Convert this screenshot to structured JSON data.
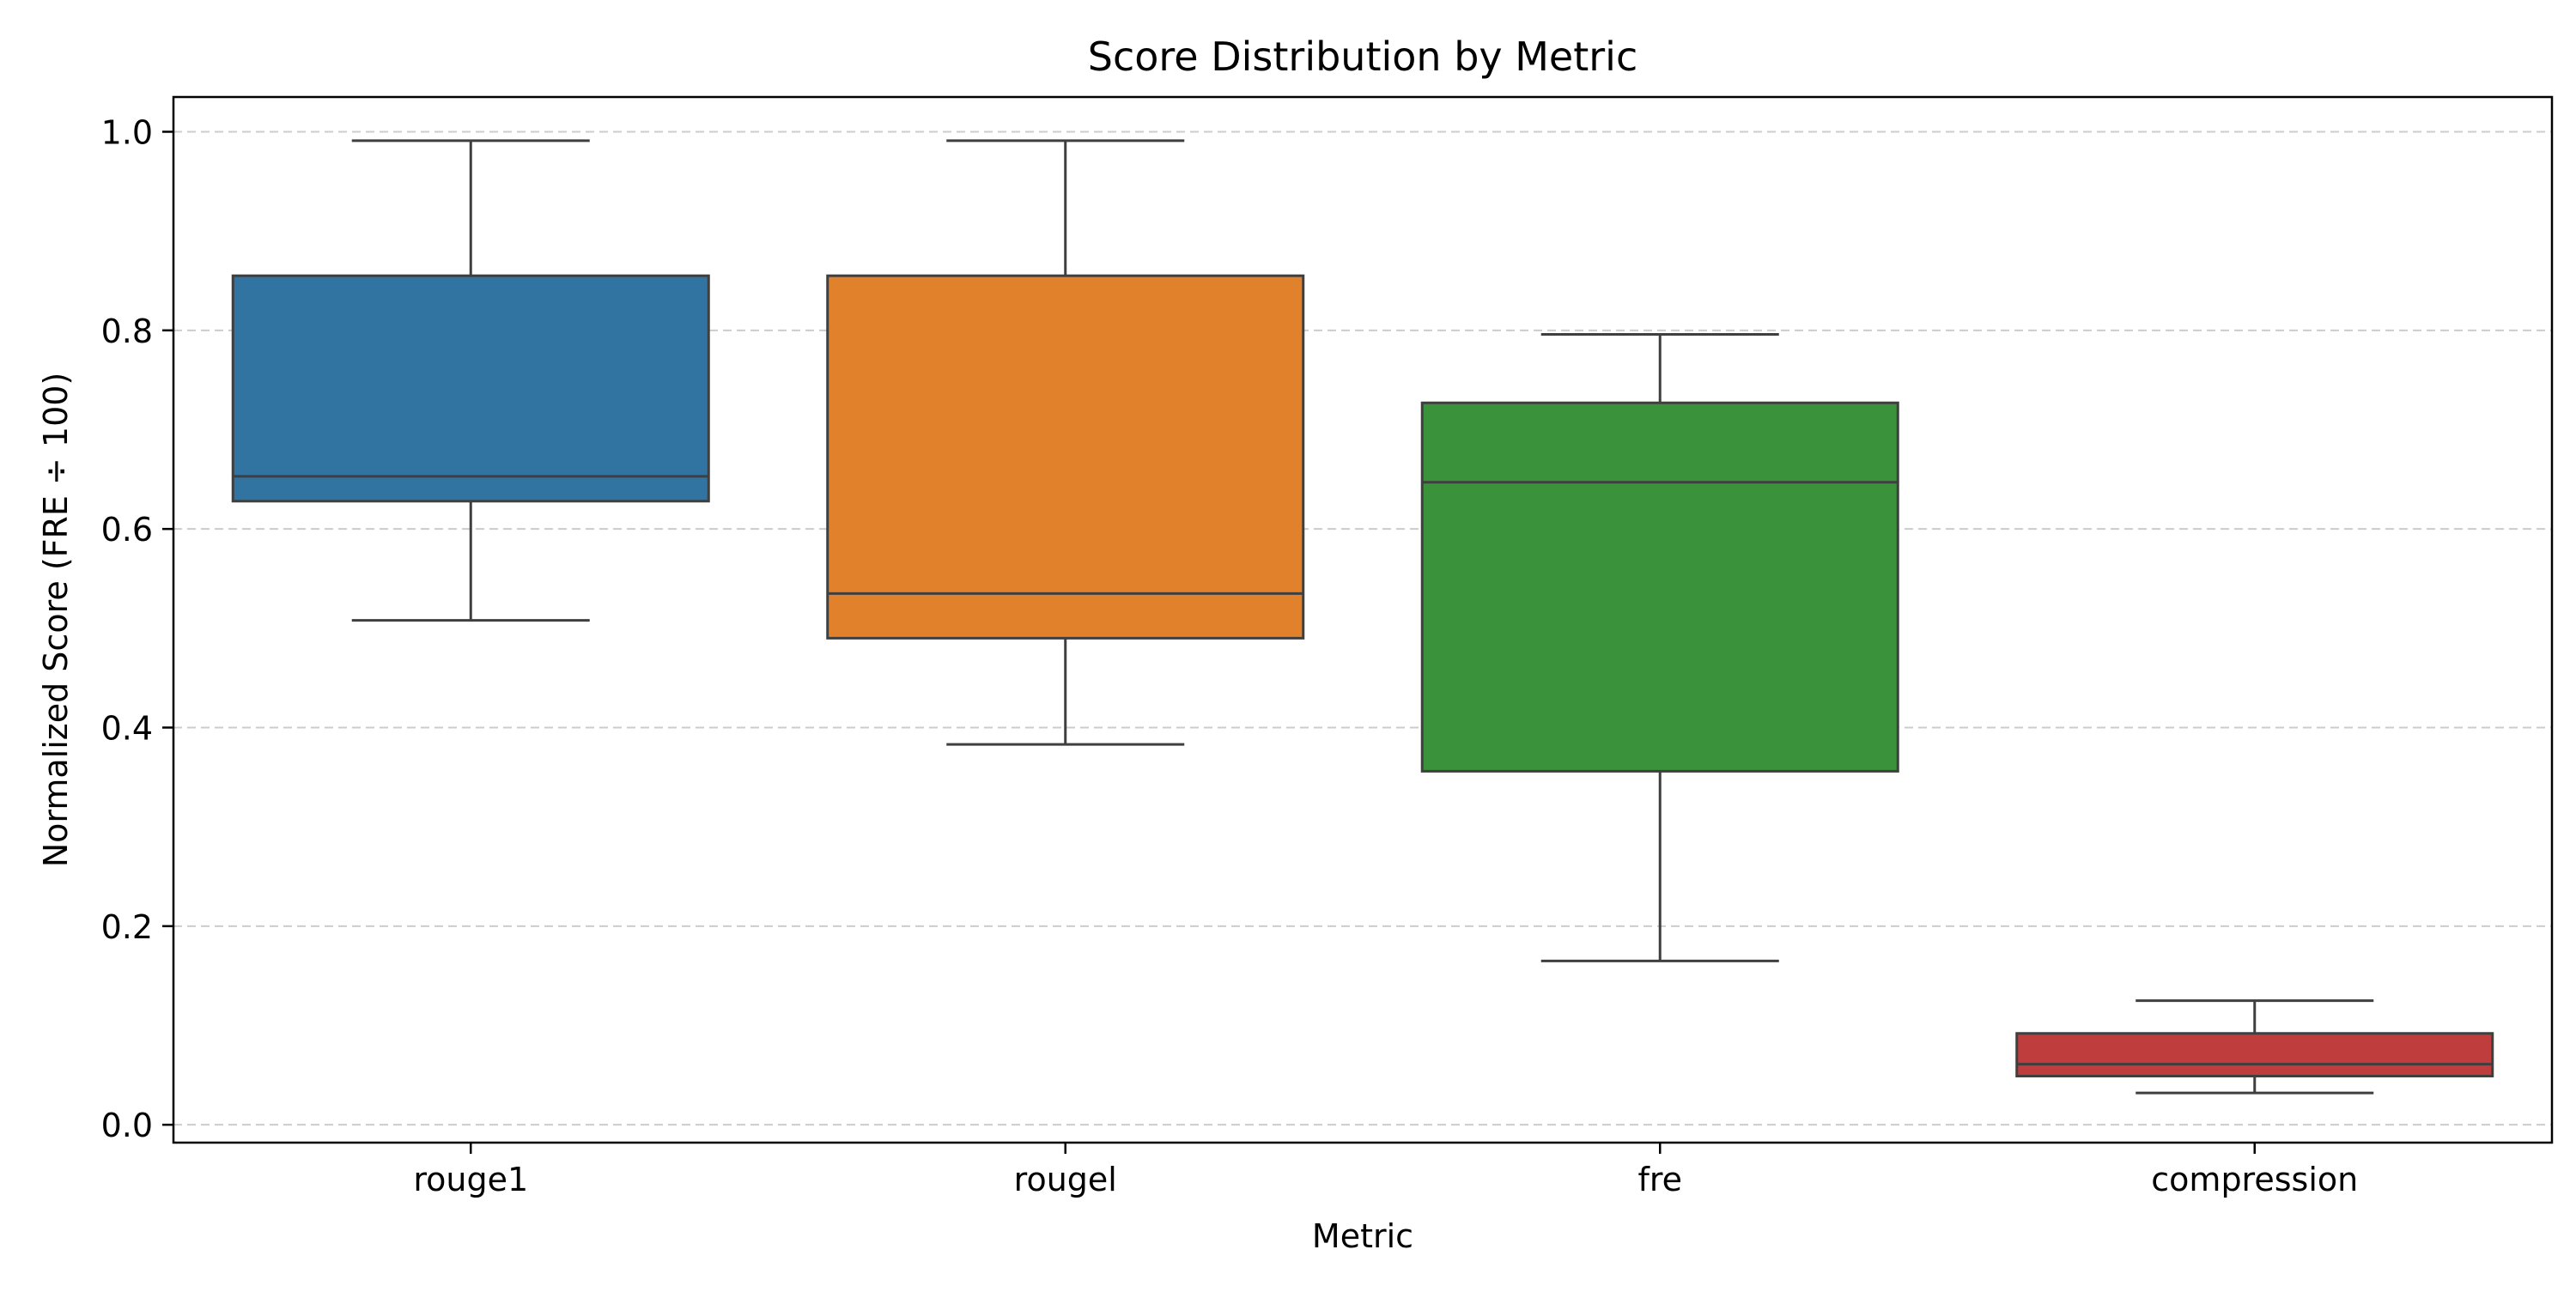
{
  "chart_data": {
    "type": "box",
    "title": "Score Distribution by Metric",
    "xlabel": "Metric",
    "ylabel": "Normalized Score (FRE ÷ 100)",
    "ylim": [
      -0.018,
      1.035
    ],
    "yticks": [
      0.0,
      0.2,
      0.4,
      0.6,
      0.8,
      1.0
    ],
    "ytick_labels": [
      "0.0",
      "0.2",
      "0.4",
      "0.6",
      "0.8",
      "1.0"
    ],
    "grid": "y-dashed",
    "categories": [
      "rouge1",
      "rougel",
      "fre",
      "compression"
    ],
    "boxes": [
      {
        "category": "rouge1",
        "whisker_low": 0.508,
        "q1": 0.628,
        "median": 0.653,
        "q3": 0.855,
        "whisker_high": 0.991,
        "color": "#3274a1"
      },
      {
        "category": "rougel",
        "whisker_low": 0.383,
        "q1": 0.49,
        "median": 0.535,
        "q3": 0.855,
        "whisker_high": 0.991,
        "color": "#e1812c"
      },
      {
        "category": "fre",
        "whisker_low": 0.165,
        "q1": 0.356,
        "median": 0.647,
        "q3": 0.727,
        "whisker_high": 0.796,
        "color": "#3a923a"
      },
      {
        "category": "compression",
        "whisker_low": 0.032,
        "q1": 0.049,
        "median": 0.061,
        "q3": 0.092,
        "whisker_high": 0.125,
        "color": "#c03d3e"
      }
    ]
  }
}
